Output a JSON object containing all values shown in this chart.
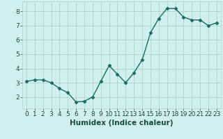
{
  "x": [
    0,
    1,
    2,
    3,
    4,
    5,
    6,
    7,
    8,
    9,
    10,
    11,
    12,
    13,
    14,
    15,
    16,
    17,
    18,
    19,
    20,
    21,
    22,
    23
  ],
  "y": [
    3.1,
    3.2,
    3.2,
    3.0,
    2.6,
    2.3,
    1.65,
    1.7,
    2.0,
    3.1,
    4.2,
    3.6,
    3.0,
    3.7,
    4.6,
    6.5,
    7.5,
    8.2,
    8.2,
    7.6,
    7.4,
    7.4,
    7.0,
    7.2
  ],
  "line_color": "#1a6b5a",
  "marker": "D",
  "marker_size": 2.5,
  "bg_color": "#cff0ec",
  "grid_color": "#aed4cd",
  "xlabel": "Humidex (Indice chaleur)",
  "xlim": [
    -0.5,
    23.5
  ],
  "ylim": [
    1.2,
    8.7
  ],
  "yticks": [
    2,
    3,
    4,
    5,
    6,
    7,
    8
  ],
  "xticks": [
    0,
    1,
    2,
    3,
    4,
    5,
    6,
    7,
    8,
    9,
    10,
    11,
    12,
    13,
    14,
    15,
    16,
    17,
    18,
    19,
    20,
    21,
    22,
    23
  ],
  "tick_label_size": 6.5,
  "xlabel_size": 7.5,
  "axis_color": "#1a4a3a",
  "spine_color": "#aed4cd"
}
